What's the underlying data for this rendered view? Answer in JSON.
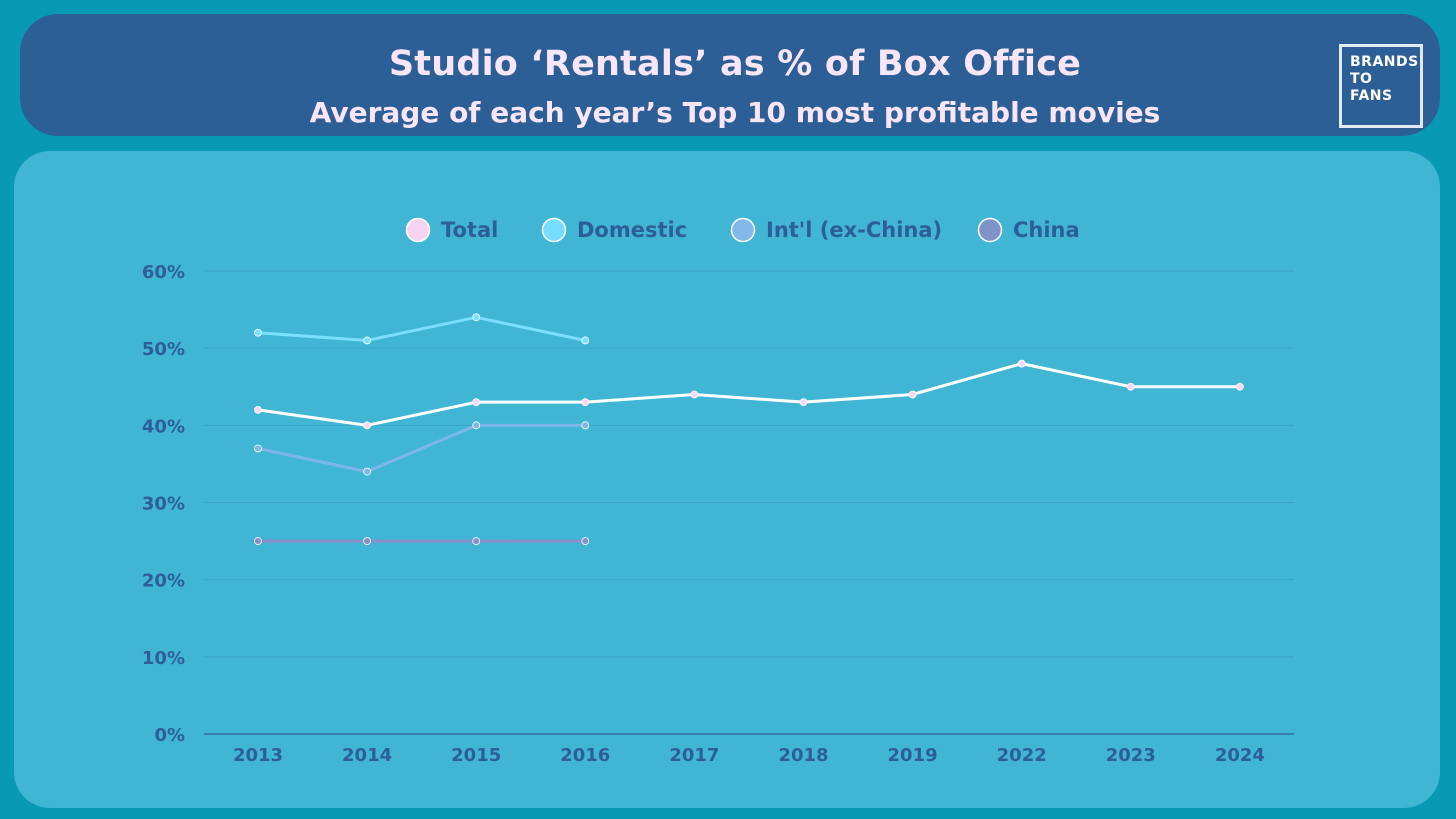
{
  "header": {
    "title": "Studio ‘Rentals’ as % of Box Office",
    "subtitle": "Average of each year’s Top 10 most profitable movies"
  },
  "logo": {
    "line1": "BRANDS",
    "line2": "TO",
    "line3": "FANS"
  },
  "chart_data": {
    "type": "line",
    "title": "Studio ‘Rentals’ as % of Box Office",
    "subtitle": "Average of each year’s Top 10 most profitable movies",
    "xlabel": "",
    "ylabel": "",
    "categories": [
      "2013",
      "2014",
      "2015",
      "2016",
      "2017",
      "2018",
      "2019",
      "2022",
      "2023",
      "2024"
    ],
    "ylim": [
      0,
      60
    ],
    "yticks": [
      0,
      10,
      20,
      30,
      40,
      50,
      60
    ],
    "ytick_labels": [
      "0%",
      "10%",
      "20%",
      "30%",
      "40%",
      "50%",
      "60%"
    ],
    "grid": true,
    "legend_position": "top-center",
    "series": [
      {
        "name": "Total",
        "color": "#ffffff",
        "marker_color": "#f6d8f4",
        "legend_color": "#f6d3f3",
        "values": [
          42,
          40,
          43,
          43,
          44,
          43,
          44,
          48,
          45,
          45
        ]
      },
      {
        "name": "Domestic",
        "color": "#7bdfff",
        "marker_color": "#7bdfff",
        "legend_color": "#78dcff",
        "values": [
          52,
          51,
          54,
          51,
          null,
          null,
          null,
          null,
          null,
          null
        ]
      },
      {
        "name": "Int'l (ex-China)",
        "color": "#7fb6ea",
        "marker_color": "#7fb6ea",
        "legend_color": "#84b8ea",
        "values": [
          37,
          34,
          40,
          40,
          null,
          null,
          null,
          null,
          null,
          null
        ]
      },
      {
        "name": "China",
        "color": "#8a8fcc",
        "marker_color": "#8a8fcc",
        "legend_color": "#7f93c8",
        "values": [
          25,
          25,
          25,
          25,
          null,
          null,
          null,
          null,
          null,
          null
        ]
      }
    ],
    "axis_color": "#2e5e9a",
    "gridline_color": "#3aa3c6"
  }
}
